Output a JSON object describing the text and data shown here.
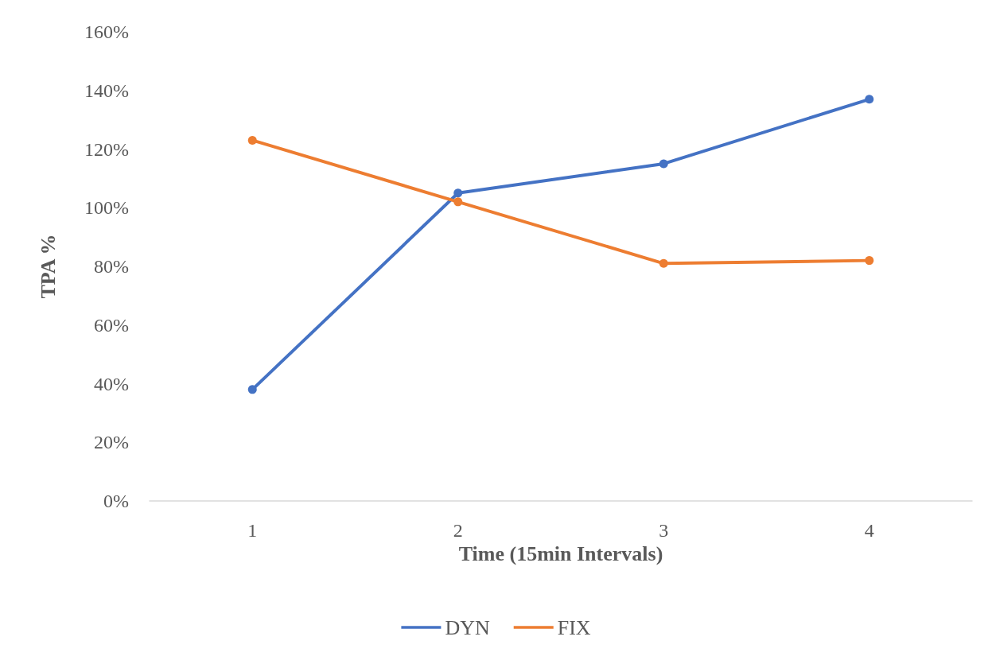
{
  "chart_data": {
    "type": "line",
    "xlabel": "Time (15min Intervals)",
    "ylabel": "TPA %",
    "categories": [
      "1",
      "2",
      "3",
      "4"
    ],
    "series": [
      {
        "name": "DYN",
        "color": "#4472c4",
        "values": [
          38,
          105,
          115,
          137
        ]
      },
      {
        "name": "FIX",
        "color": "#ed7d31",
        "values": [
          123,
          102,
          81,
          82
        ]
      }
    ],
    "ylim": [
      0,
      160
    ],
    "yticks": [
      {
        "value": 0,
        "label": "0%"
      },
      {
        "value": 20,
        "label": "20%"
      },
      {
        "value": 40,
        "label": "40%"
      },
      {
        "value": 60,
        "label": "60%"
      },
      {
        "value": 80,
        "label": "80%"
      },
      {
        "value": 100,
        "label": "100%"
      },
      {
        "value": 120,
        "label": "120%"
      },
      {
        "value": 140,
        "label": "140%"
      },
      {
        "value": 160,
        "label": "160%"
      }
    ],
    "grid": false,
    "legend": "bottom",
    "marker": "circle",
    "line_style": "solid"
  }
}
